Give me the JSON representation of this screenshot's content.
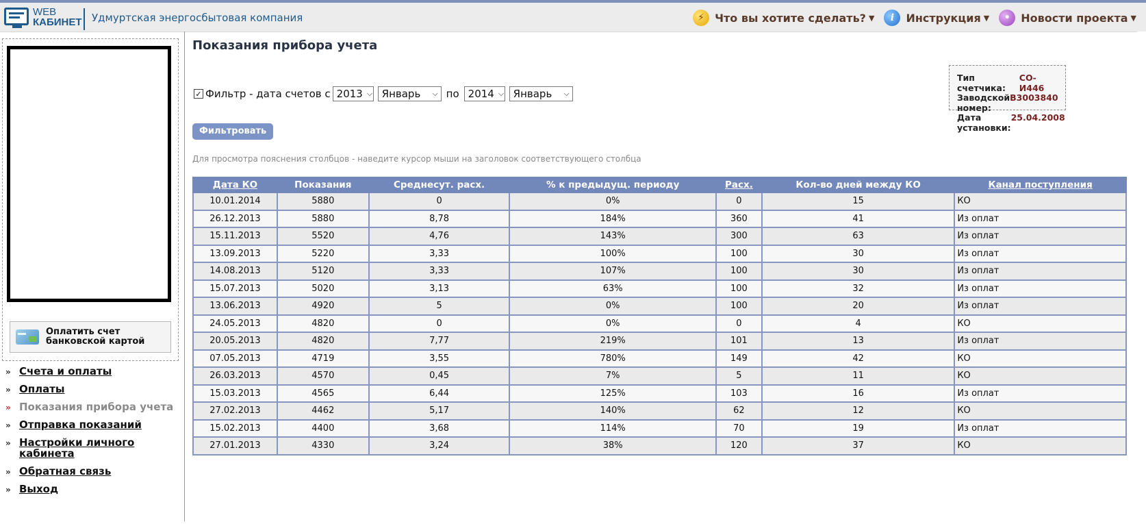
{
  "header": {
    "logo_line1": "WEB",
    "logo_line2": "КАБИНЕТ",
    "company": "Удмуртская энергосбытовая компания",
    "menu": [
      {
        "label": "Что вы хотите сделать?",
        "icon": "lightning-icon"
      },
      {
        "label": "Инструкция",
        "icon": "info-icon"
      },
      {
        "label": "Новости проекта",
        "icon": "news-icon"
      }
    ]
  },
  "sidebar": {
    "pay_card_label": "Оплатить счет банковской картой",
    "nav": [
      {
        "label": "Счета и оплаты"
      },
      {
        "label": "Оплаты"
      },
      {
        "label": "Показания прибора учета"
      },
      {
        "label": "Отправка показаний"
      },
      {
        "label": "Настройки личного кабинета"
      },
      {
        "label": "Обратная связь"
      },
      {
        "label": "Выход"
      }
    ]
  },
  "main": {
    "title": "Показания прибора учета",
    "filter": {
      "checked": true,
      "label": "Фильтр - дата счетов с",
      "from_year": "2013",
      "from_month": "Январь",
      "to_label": "по",
      "to_year": "2014",
      "to_month": "Январь",
      "button": "Фильтровать"
    },
    "meter": {
      "type_label": "Тип счетчика:",
      "type_value": "СО-И446",
      "serial_label": "Заводской номер:",
      "serial_value": "В3003840",
      "install_label": "Дата установки:",
      "install_value": "25.04.2008"
    },
    "hint": "Для просмотра пояснения столбцов - наведите курсор мыши на заголовок соответствующего столбца",
    "columns": [
      "Дата КО",
      "Показания",
      "Среднесут. расх.",
      "% к предыдущ. периоду",
      "Расх.",
      "Кол-во дней между КО",
      "Канал поступления"
    ],
    "rows": [
      [
        "10.01.2014",
        "5880",
        "0",
        "0%",
        "0",
        "15",
        "КО"
      ],
      [
        "26.12.2013",
        "5880",
        "8,78",
        "184%",
        "360",
        "41",
        "Из оплат"
      ],
      [
        "15.11.2013",
        "5520",
        "4,76",
        "143%",
        "300",
        "63",
        "Из оплат"
      ],
      [
        "13.09.2013",
        "5220",
        "3,33",
        "100%",
        "100",
        "30",
        "Из оплат"
      ],
      [
        "14.08.2013",
        "5120",
        "3,33",
        "107%",
        "100",
        "30",
        "Из оплат"
      ],
      [
        "15.07.2013",
        "5020",
        "3,13",
        "63%",
        "100",
        "32",
        "Из оплат"
      ],
      [
        "13.06.2013",
        "4920",
        "5",
        "0%",
        "100",
        "20",
        "Из оплат"
      ],
      [
        "24.05.2013",
        "4820",
        "0",
        "0%",
        "0",
        "4",
        "КО"
      ],
      [
        "20.05.2013",
        "4820",
        "7,77",
        "219%",
        "101",
        "13",
        "Из оплат"
      ],
      [
        "07.05.2013",
        "4719",
        "3,55",
        "780%",
        "149",
        "42",
        "КО"
      ],
      [
        "26.03.2013",
        "4570",
        "0,45",
        "7%",
        "5",
        "11",
        "КО"
      ],
      [
        "15.03.2013",
        "4565",
        "6,44",
        "125%",
        "103",
        "16",
        "Из оплат"
      ],
      [
        "27.02.2013",
        "4462",
        "5,17",
        "140%",
        "62",
        "12",
        "КО"
      ],
      [
        "15.02.2013",
        "4400",
        "3,68",
        "114%",
        "70",
        "19",
        "Из оплат"
      ],
      [
        "27.01.2013",
        "4330",
        "3,24",
        "38%",
        "120",
        "37",
        "КО"
      ]
    ]
  },
  "colors": {
    "brand_blue": "#1f5a8c",
    "table_header": "#7388ba",
    "table_border": "#8796c0",
    "button": "#7b93c5"
  }
}
